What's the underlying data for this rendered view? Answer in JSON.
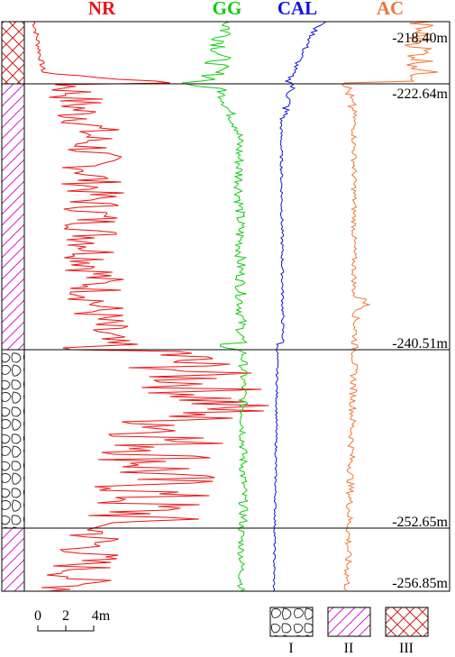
{
  "headers": {
    "nr": "NR",
    "gg": "GG",
    "cal": "CAL",
    "ac": "AC"
  },
  "depths": [
    "-218.40m",
    "-222.64m",
    "-240.51m",
    "-252.65m",
    "-256.85m"
  ],
  "scale": {
    "zero": "0",
    "two": "2",
    "four": "4m"
  },
  "legend": [
    "I",
    "II",
    "III"
  ]
}
